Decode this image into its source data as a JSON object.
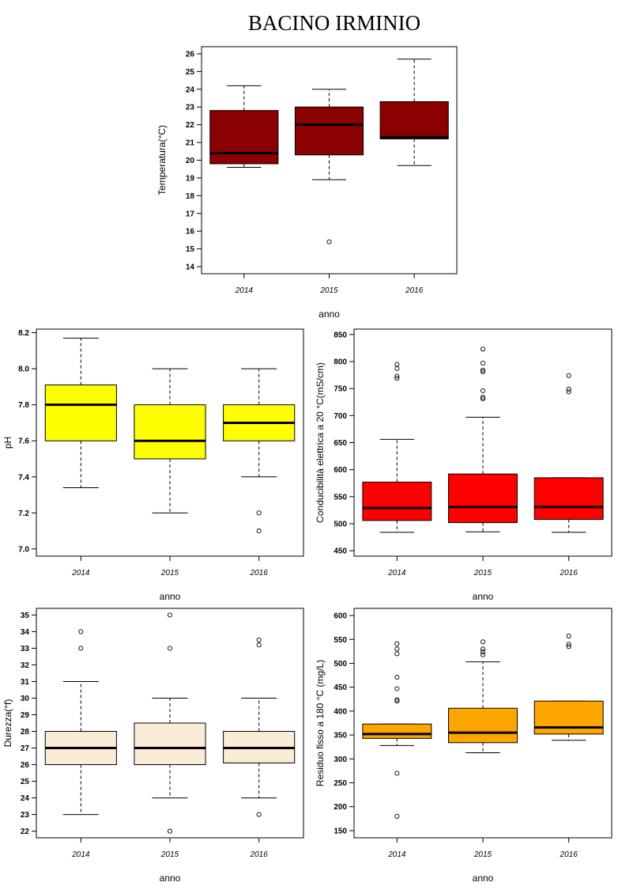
{
  "title": "BACINO IRMINIO",
  "chart_data": [
    {
      "type": "boxplot",
      "id": "temp",
      "ylabel": "Temperatura(°C)",
      "xlabel": "anno",
      "categories": [
        "2014",
        "2015",
        "2016"
      ],
      "ylim": [
        13.6,
        26.4
      ],
      "yticks": [
        14,
        15,
        16,
        17,
        18,
        19,
        20,
        21,
        22,
        23,
        24,
        25,
        26
      ],
      "color": "#8B0000",
      "boxes": [
        {
          "label": "2014",
          "whisker_low": 19.6,
          "q1": 19.8,
          "median": 20.4,
          "q3": 22.8,
          "whisker_high": 24.2,
          "outliers": []
        },
        {
          "label": "2015",
          "whisker_low": 18.9,
          "q1": 20.3,
          "median": 22.0,
          "q3": 23.0,
          "whisker_high": 24.0,
          "outliers": [
            15.4
          ]
        },
        {
          "label": "2016",
          "whisker_low": 19.7,
          "q1": 21.2,
          "median": 21.3,
          "q3": 23.3,
          "whisker_high": 25.7,
          "outliers": []
        }
      ]
    },
    {
      "type": "boxplot",
      "id": "ph",
      "ylabel": "pH",
      "xlabel": "anno",
      "categories": [
        "2014",
        "2015",
        "2016"
      ],
      "ylim": [
        6.96,
        8.22
      ],
      "yticks": [
        "7.0",
        "7.2",
        "7.4",
        "7.6",
        "7.8",
        "8.0",
        "8.2"
      ],
      "color": "#FFFF00",
      "boxes": [
        {
          "label": "2014",
          "whisker_low": 7.34,
          "q1": 7.6,
          "median": 7.8,
          "q3": 7.91,
          "whisker_high": 8.17,
          "outliers": []
        },
        {
          "label": "2015",
          "whisker_low": 7.2,
          "q1": 7.5,
          "median": 7.6,
          "q3": 7.8,
          "whisker_high": 8.0,
          "outliers": []
        },
        {
          "label": "2016",
          "whisker_low": 7.4,
          "q1": 7.6,
          "median": 7.7,
          "q3": 7.8,
          "whisker_high": 8.0,
          "outliers": [
            7.2,
            7.1
          ]
        }
      ]
    },
    {
      "type": "boxplot",
      "id": "cond",
      "ylabel": "Conducibilità elettrica a 20 °C(mS/cm)",
      "xlabel": "anno",
      "categories": [
        "2014",
        "2015",
        "2016"
      ],
      "ylim": [
        440,
        860
      ],
      "yticks": [
        450,
        500,
        550,
        600,
        650,
        700,
        750,
        800,
        850
      ],
      "color": "#FF0000",
      "boxes": [
        {
          "label": "2014",
          "whisker_low": 484,
          "q1": 506,
          "median": 529,
          "q3": 577,
          "whisker_high": 656,
          "outliers": [
            769,
            773,
            787,
            795
          ]
        },
        {
          "label": "2015",
          "whisker_low": 485,
          "q1": 502,
          "median": 531,
          "q3": 592,
          "whisker_high": 697,
          "outliers": [
            731,
            734,
            746,
            781,
            784,
            797,
            823
          ]
        },
        {
          "label": "2016",
          "whisker_low": 484,
          "q1": 508,
          "median": 531,
          "q3": 585,
          "whisker_high": 585,
          "outliers": [
            744,
            749,
            774
          ]
        }
      ]
    },
    {
      "type": "boxplot",
      "id": "durezza",
      "ylabel": "Durezza(°f)",
      "xlabel": "anno",
      "categories": [
        "2014",
        "2015",
        "2016"
      ],
      "ylim": [
        21.6,
        35.4
      ],
      "yticks": [
        22,
        23,
        24,
        25,
        26,
        27,
        28,
        29,
        30,
        31,
        32,
        33,
        34,
        35
      ],
      "color": "#FAEBD7",
      "boxes": [
        {
          "label": "2014",
          "whisker_low": 23,
          "q1": 26,
          "median": 27,
          "q3": 28,
          "whisker_high": 31,
          "outliers": [
            33,
            34
          ]
        },
        {
          "label": "2015",
          "whisker_low": 24,
          "q1": 26,
          "median": 27,
          "q3": 28.5,
          "whisker_high": 30,
          "outliers": [
            22,
            33,
            35
          ]
        },
        {
          "label": "2016",
          "whisker_low": 24,
          "q1": 26.1,
          "median": 27,
          "q3": 28,
          "whisker_high": 30,
          "outliers": [
            23,
            33.2,
            33.5
          ]
        }
      ]
    },
    {
      "type": "boxplot",
      "id": "residuo",
      "ylabel": "Residuo fisso a 180 °C (mg/L)",
      "xlabel": "anno",
      "categories": [
        "2014",
        "2015",
        "2016"
      ],
      "ylim": [
        135,
        615
      ],
      "yticks": [
        150,
        200,
        250,
        300,
        350,
        400,
        450,
        500,
        550,
        600
      ],
      "color": "#FFA500",
      "boxes": [
        {
          "label": "2014",
          "whisker_low": 328,
          "q1": 343,
          "median": 352,
          "q3": 373,
          "whisker_high": 373,
          "outliers": [
            180,
            270,
            421,
            424,
            447,
            471,
            520,
            530,
            541
          ]
        },
        {
          "label": "2015",
          "whisker_low": 313,
          "q1": 334,
          "median": 355,
          "q3": 406,
          "whisker_high": 503,
          "outliers": [
            518,
            524,
            530,
            545
          ]
        },
        {
          "label": "2016",
          "whisker_low": 339,
          "q1": 352,
          "median": 366,
          "q3": 421,
          "whisker_high": 421,
          "outliers": [
            535,
            540,
            557
          ]
        }
      ]
    }
  ]
}
